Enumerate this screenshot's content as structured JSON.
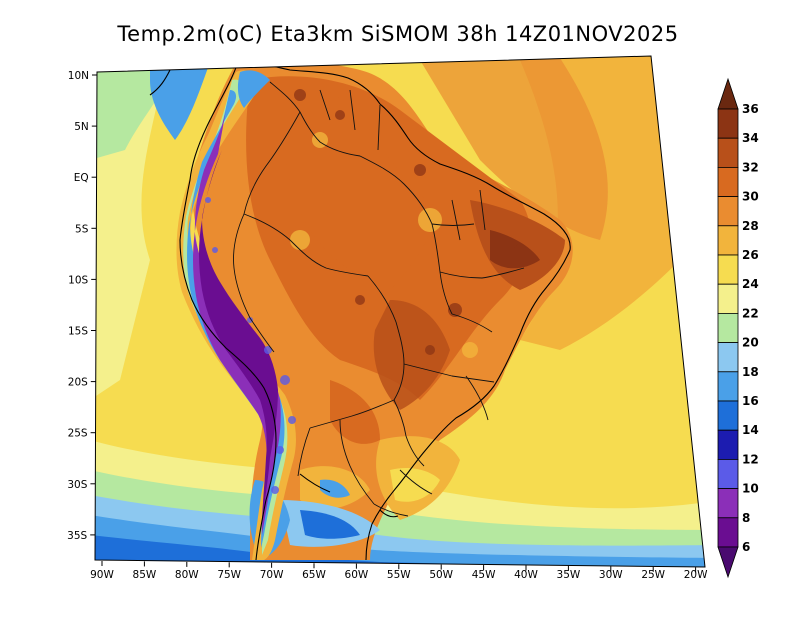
{
  "title": "Temp.2m(oC) Eta3km SiSMOM 38h 14Z01NOV2025",
  "map": {
    "lat_ticks": [
      "10N",
      "5N",
      "EQ",
      "5S",
      "10S",
      "15S",
      "20S",
      "25S",
      "30S",
      "35S"
    ],
    "lon_ticks": [
      "90W",
      "85W",
      "80W",
      "75W",
      "70W",
      "65W",
      "60W",
      "55W",
      "50W",
      "45W",
      "40W",
      "35W",
      "30W",
      "25W",
      "20W"
    ]
  },
  "colorbar": {
    "labels": [
      "36",
      "34",
      "32",
      "30",
      "28",
      "26",
      "24",
      "22",
      "20",
      "18",
      "16",
      "14",
      "12",
      "10",
      "8",
      "6"
    ],
    "colors": {
      "c6_8": "#6a0d91",
      "c8_10": "#8b2fb8",
      "c10_12": "#5b5be8",
      "c12_14": "#1c1cb0",
      "c14_16": "#1e6fd9",
      "c16_18": "#4aa0e8",
      "c18_20": "#8cc8f0",
      "c20_22": "#b5e8a0",
      "c22_24": "#f4f08c",
      "c24_26": "#f6dc50",
      "c26_28": "#f2b43c",
      "c28_30": "#ea8c30",
      "c30_32": "#d86a20",
      "c32_34": "#b8501a",
      "c34_36": "#8c3414",
      "gt36": "#6a2810",
      "lt6": "#4a0a70"
    }
  }
}
